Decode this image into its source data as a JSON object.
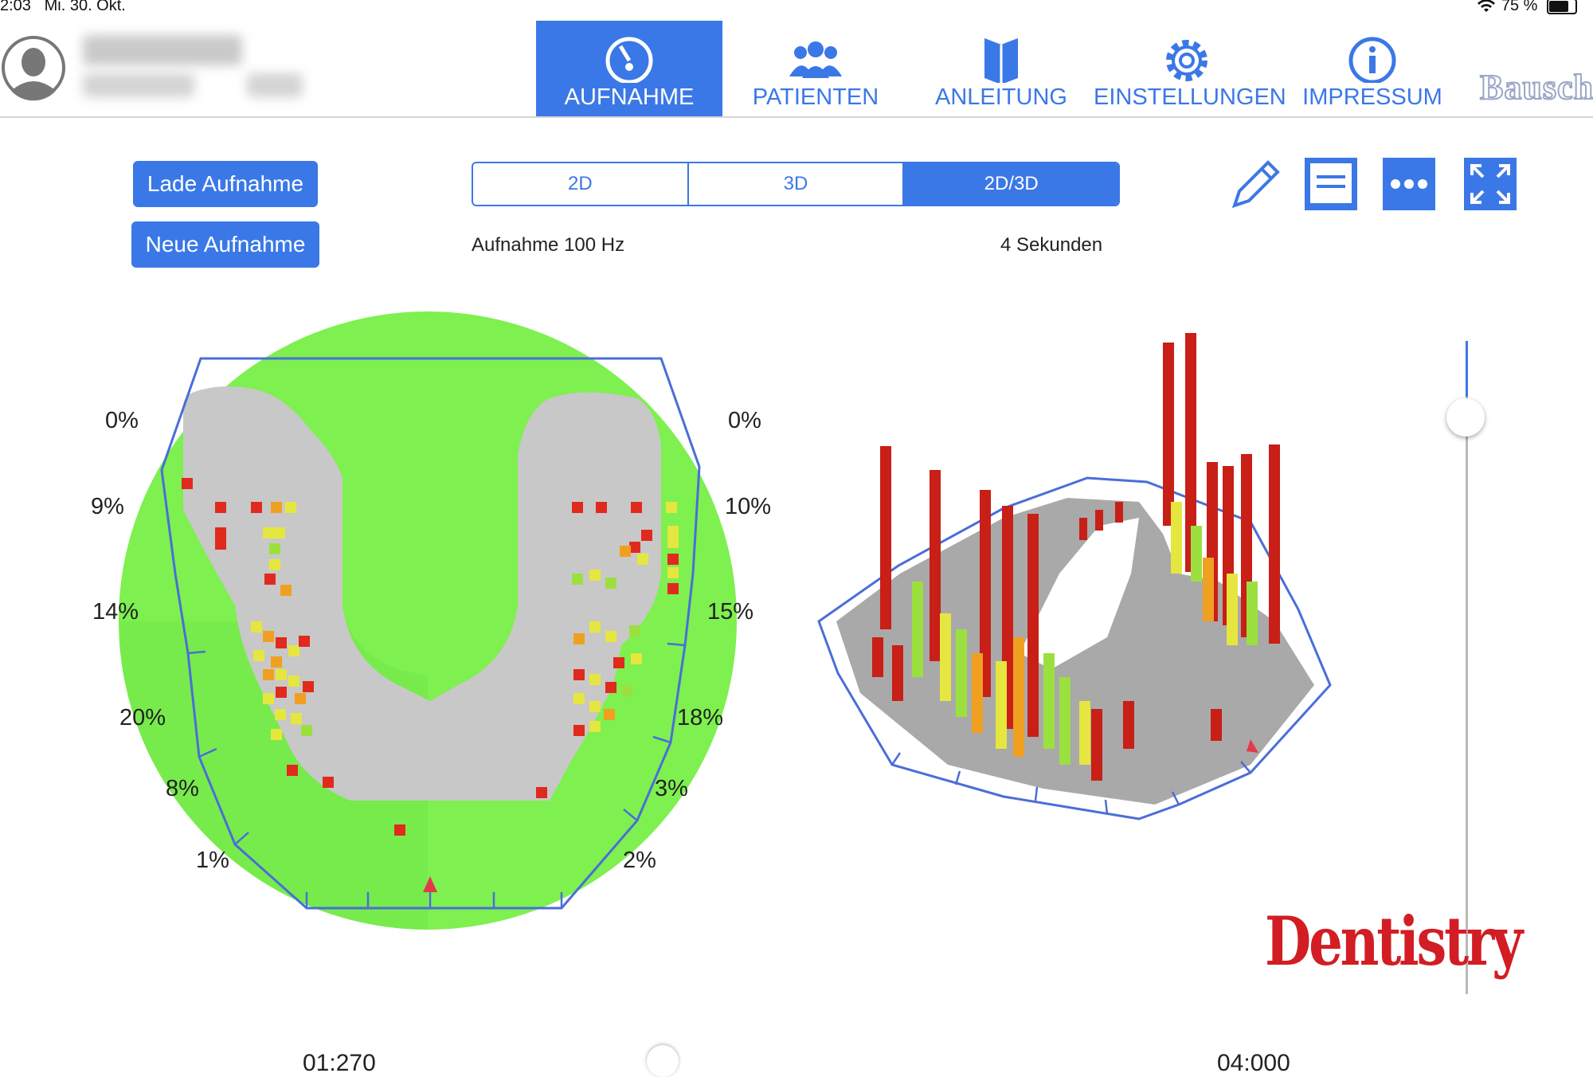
{
  "status_bar": {
    "time": "2:03",
    "date": "Mi. 30. Okt.",
    "battery": "75 %"
  },
  "header": {
    "nav": [
      {
        "label": "AUFNAHME",
        "icon": "gauge-icon",
        "active": true
      },
      {
        "label": "PATIENTEN",
        "icon": "users-icon",
        "active": false
      },
      {
        "label": "ANLEITUNG",
        "icon": "book-icon",
        "active": false
      },
      {
        "label": "EINSTELLUNGEN",
        "icon": "gear-icon",
        "active": false
      },
      {
        "label": "IMPRESSUM",
        "icon": "info-icon",
        "active": false
      }
    ],
    "brand": "Bausch"
  },
  "toolbar": {
    "load_label": "Lade Aufnahme",
    "new_label": "Neue Aufnahme",
    "view_modes": [
      "2D",
      "3D",
      "2D/3D"
    ],
    "selected_view": "2D/3D",
    "recording_rate": "Aufnahme 100 Hz",
    "duration": "4 Sekunden"
  },
  "chart_2d": {
    "left_percentages": [
      "0%",
      "9%",
      "14%",
      "20%",
      "8%",
      "1%"
    ],
    "right_percentages": [
      "0%",
      "10%",
      "15%",
      "18%",
      "3%",
      "2%"
    ]
  },
  "slider": {
    "level": 0.08
  },
  "timeline": {
    "left_time": "01:270",
    "right_time": "04:000"
  },
  "watermark": "Dentistry",
  "colors": {
    "accent": "#3b78e7",
    "area": "#7ef04f",
    "arch": "#c8c8c8",
    "high": "#e02a1e",
    "mid": "#f0a020",
    "low": "#e6e640"
  }
}
